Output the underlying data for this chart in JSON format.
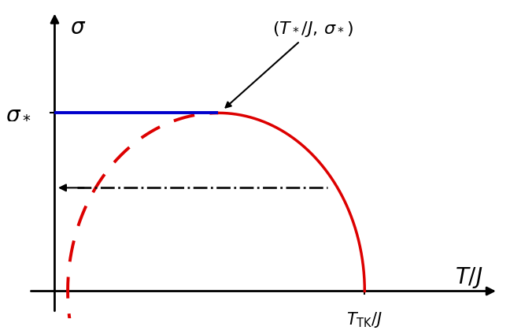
{
  "background_color": "#ffffff",
  "axis_color": "#000000",
  "sigma_star": 0.65,
  "T_TK": 0.72,
  "T_star": 0.38,
  "arrow_color": "#000000",
  "blue_line_color": "#0000cc",
  "red_solid_color": "#dd0000",
  "red_dashed_color": "#dd0000",
  "dashdot_color": "#111111",
  "label_sigma": "$\\sigma$",
  "label_sigma_star": "$\\sigma_*$",
  "label_T_over_J": "$T/J$",
  "label_T_TK": "$T_{\\mathrm{TK}}/J$",
  "label_point": "$(T_*/J,\\, \\sigma_*)$",
  "figsize": [
    6.48,
    4.24
  ],
  "dpi": 100
}
